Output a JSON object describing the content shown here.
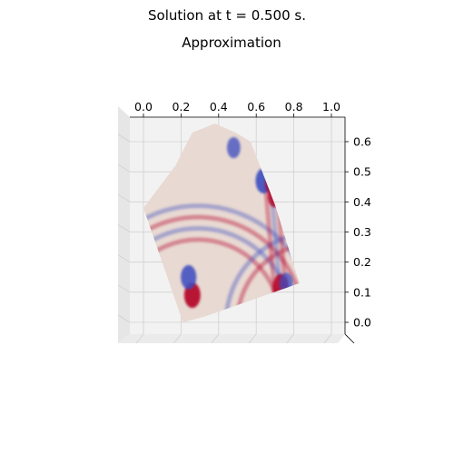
{
  "figure": {
    "suptitle": "Solution at t = 0.500 s.",
    "title": "Approximation"
  },
  "chart_data": {
    "type": "surface",
    "title": "Approximation",
    "colormap": "coolwarm",
    "colors": {
      "cold": "#3b4cc0",
      "neutral": "#dddddd",
      "hot": "#b40426"
    },
    "view": "top-down 3D projection",
    "x_ticks": [
      "0.0",
      "0.2",
      "0.4",
      "0.6",
      "0.8",
      "1.0"
    ],
    "y_ticks": [
      "0.0",
      "0.1",
      "0.2",
      "0.3",
      "0.4",
      "0.5",
      "0.6"
    ],
    "xlim": [
      0.0,
      1.0
    ],
    "ylim": [
      -0.05,
      0.65
    ],
    "grid": true,
    "domain_outline": [
      [
        0.0,
        0.38
      ],
      [
        0.17,
        0.52
      ],
      [
        0.26,
        0.63
      ],
      [
        0.38,
        0.66
      ],
      [
        0.49,
        0.63
      ],
      [
        0.57,
        0.6
      ],
      [
        0.7,
        0.39
      ],
      [
        0.83,
        0.13
      ],
      [
        0.33,
        0.02
      ],
      [
        0.21,
        0.0
      ]
    ],
    "features": [
      {
        "kind": "hot",
        "x": 0.26,
        "y": 0.09,
        "strength": 1.0
      },
      {
        "kind": "cold",
        "x": 0.24,
        "y": 0.15,
        "strength": 0.9
      },
      {
        "kind": "cold",
        "x": 0.64,
        "y": 0.47,
        "strength": 1.0
      },
      {
        "kind": "cold",
        "x": 0.48,
        "y": 0.58,
        "strength": 0.6
      },
      {
        "kind": "hot",
        "x": 0.7,
        "y": 0.42,
        "strength": 0.8
      },
      {
        "kind": "hot",
        "x": 0.73,
        "y": 0.12,
        "strength": 0.9
      },
      {
        "kind": "cold",
        "x": 0.76,
        "y": 0.13,
        "strength": 0.6
      },
      {
        "kind": "hot",
        "x": 0.68,
        "y": 0.46,
        "strength": 0.5
      }
    ]
  }
}
